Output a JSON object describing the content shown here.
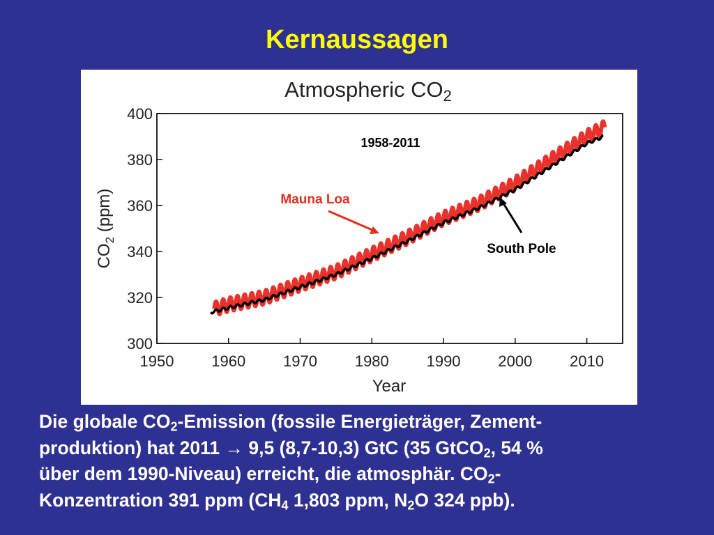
{
  "slide": {
    "title": "Kernaussagen",
    "text_parts": [
      "Die globale CO",
      "2",
      "-Emission (fossile Energieträger, Zement-",
      "produktion) hat 2011 → 9,5 (8,7-10,3) GtC (35 GtCO",
      "2",
      ", 54 %",
      "über dem 1990-Niveau) erreicht, die atmosphär. CO",
      "2",
      "-",
      "Konzentration 391 ppm (CH",
      "4",
      " 1,803 ppm, N",
      "2",
      "O 324 ppb)."
    ]
  },
  "colors": {
    "background": "#2f3192",
    "title": "#ffff00",
    "text": "#ffffff",
    "mauna_loa": "#e8322b",
    "south_pole": "#000000",
    "annotation_red": "#e0301e"
  },
  "chart_data": {
    "type": "line",
    "title_main": "Atmospheric CO",
    "title_sub": "2",
    "ylabel_main": "CO",
    "ylabel_sub": "2",
    "ylabel_rest": " (ppm)",
    "xlabel": "Year",
    "xlim": [
      1950,
      2015
    ],
    "ylim": [
      300,
      400
    ],
    "xticks": [
      1950,
      1960,
      1970,
      1980,
      1990,
      2000,
      2010
    ],
    "yticks": [
      300,
      320,
      340,
      360,
      380,
      400
    ],
    "grid": false,
    "annotations": {
      "period": "1958-2011",
      "mauna_loa_label": "Mauna Loa",
      "south_pole_label": "South Pole"
    },
    "series": [
      {
        "name": "Mauna Loa",
        "seasonal_amplitude": 3,
        "x": [
          1958,
          1960,
          1965,
          1970,
          1975,
          1980,
          1985,
          1990,
          1995,
          2000,
          2005,
          2010,
          2012.5
        ],
        "values": [
          315,
          316.9,
          320,
          325.7,
          331.1,
          338.7,
          346.1,
          354.4,
          360.9,
          369.5,
          379.8,
          389.9,
          394
        ]
      },
      {
        "name": "South Pole",
        "seasonal_amplitude": 0.6,
        "x": [
          1957.5,
          1960,
          1965,
          1970,
          1975,
          1980,
          1985,
          1990,
          1995,
          2000,
          2005,
          2010,
          2012.3
        ],
        "values": [
          313.5,
          315.5,
          319,
          324.5,
          330,
          337,
          344.5,
          352.5,
          359,
          367,
          377,
          387,
          390
        ]
      }
    ]
  }
}
